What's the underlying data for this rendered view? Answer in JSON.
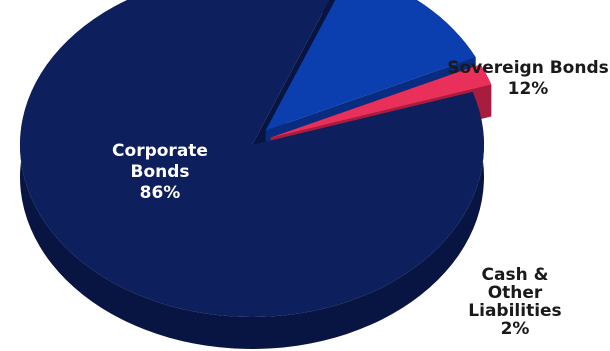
{
  "chart_data": {
    "type": "pie",
    "style": "3d-exploded",
    "title": "",
    "slices": [
      {
        "name": "Corporate Bonds",
        "label_lines": [
          "Corporate",
          "Bonds"
        ],
        "value": 86,
        "value_label": "86%",
        "color": "#0d1f5c",
        "side_color": "#081441",
        "label_inside": true
      },
      {
        "name": "Sovereign Bonds",
        "label_lines": [
          "Sovereign Bonds"
        ],
        "value": 12,
        "value_label": "12%",
        "color": "#0b3fb0",
        "side_color": "#082d80",
        "label_inside": false
      },
      {
        "name": "Cash & Other Liabilities",
        "label_lines": [
          "Cash &",
          "Other",
          "Liabilities"
        ],
        "value": 2,
        "value_label": "2%",
        "color": "#e8305a",
        "side_color": "#a81c3d",
        "label_inside": false
      }
    ]
  }
}
